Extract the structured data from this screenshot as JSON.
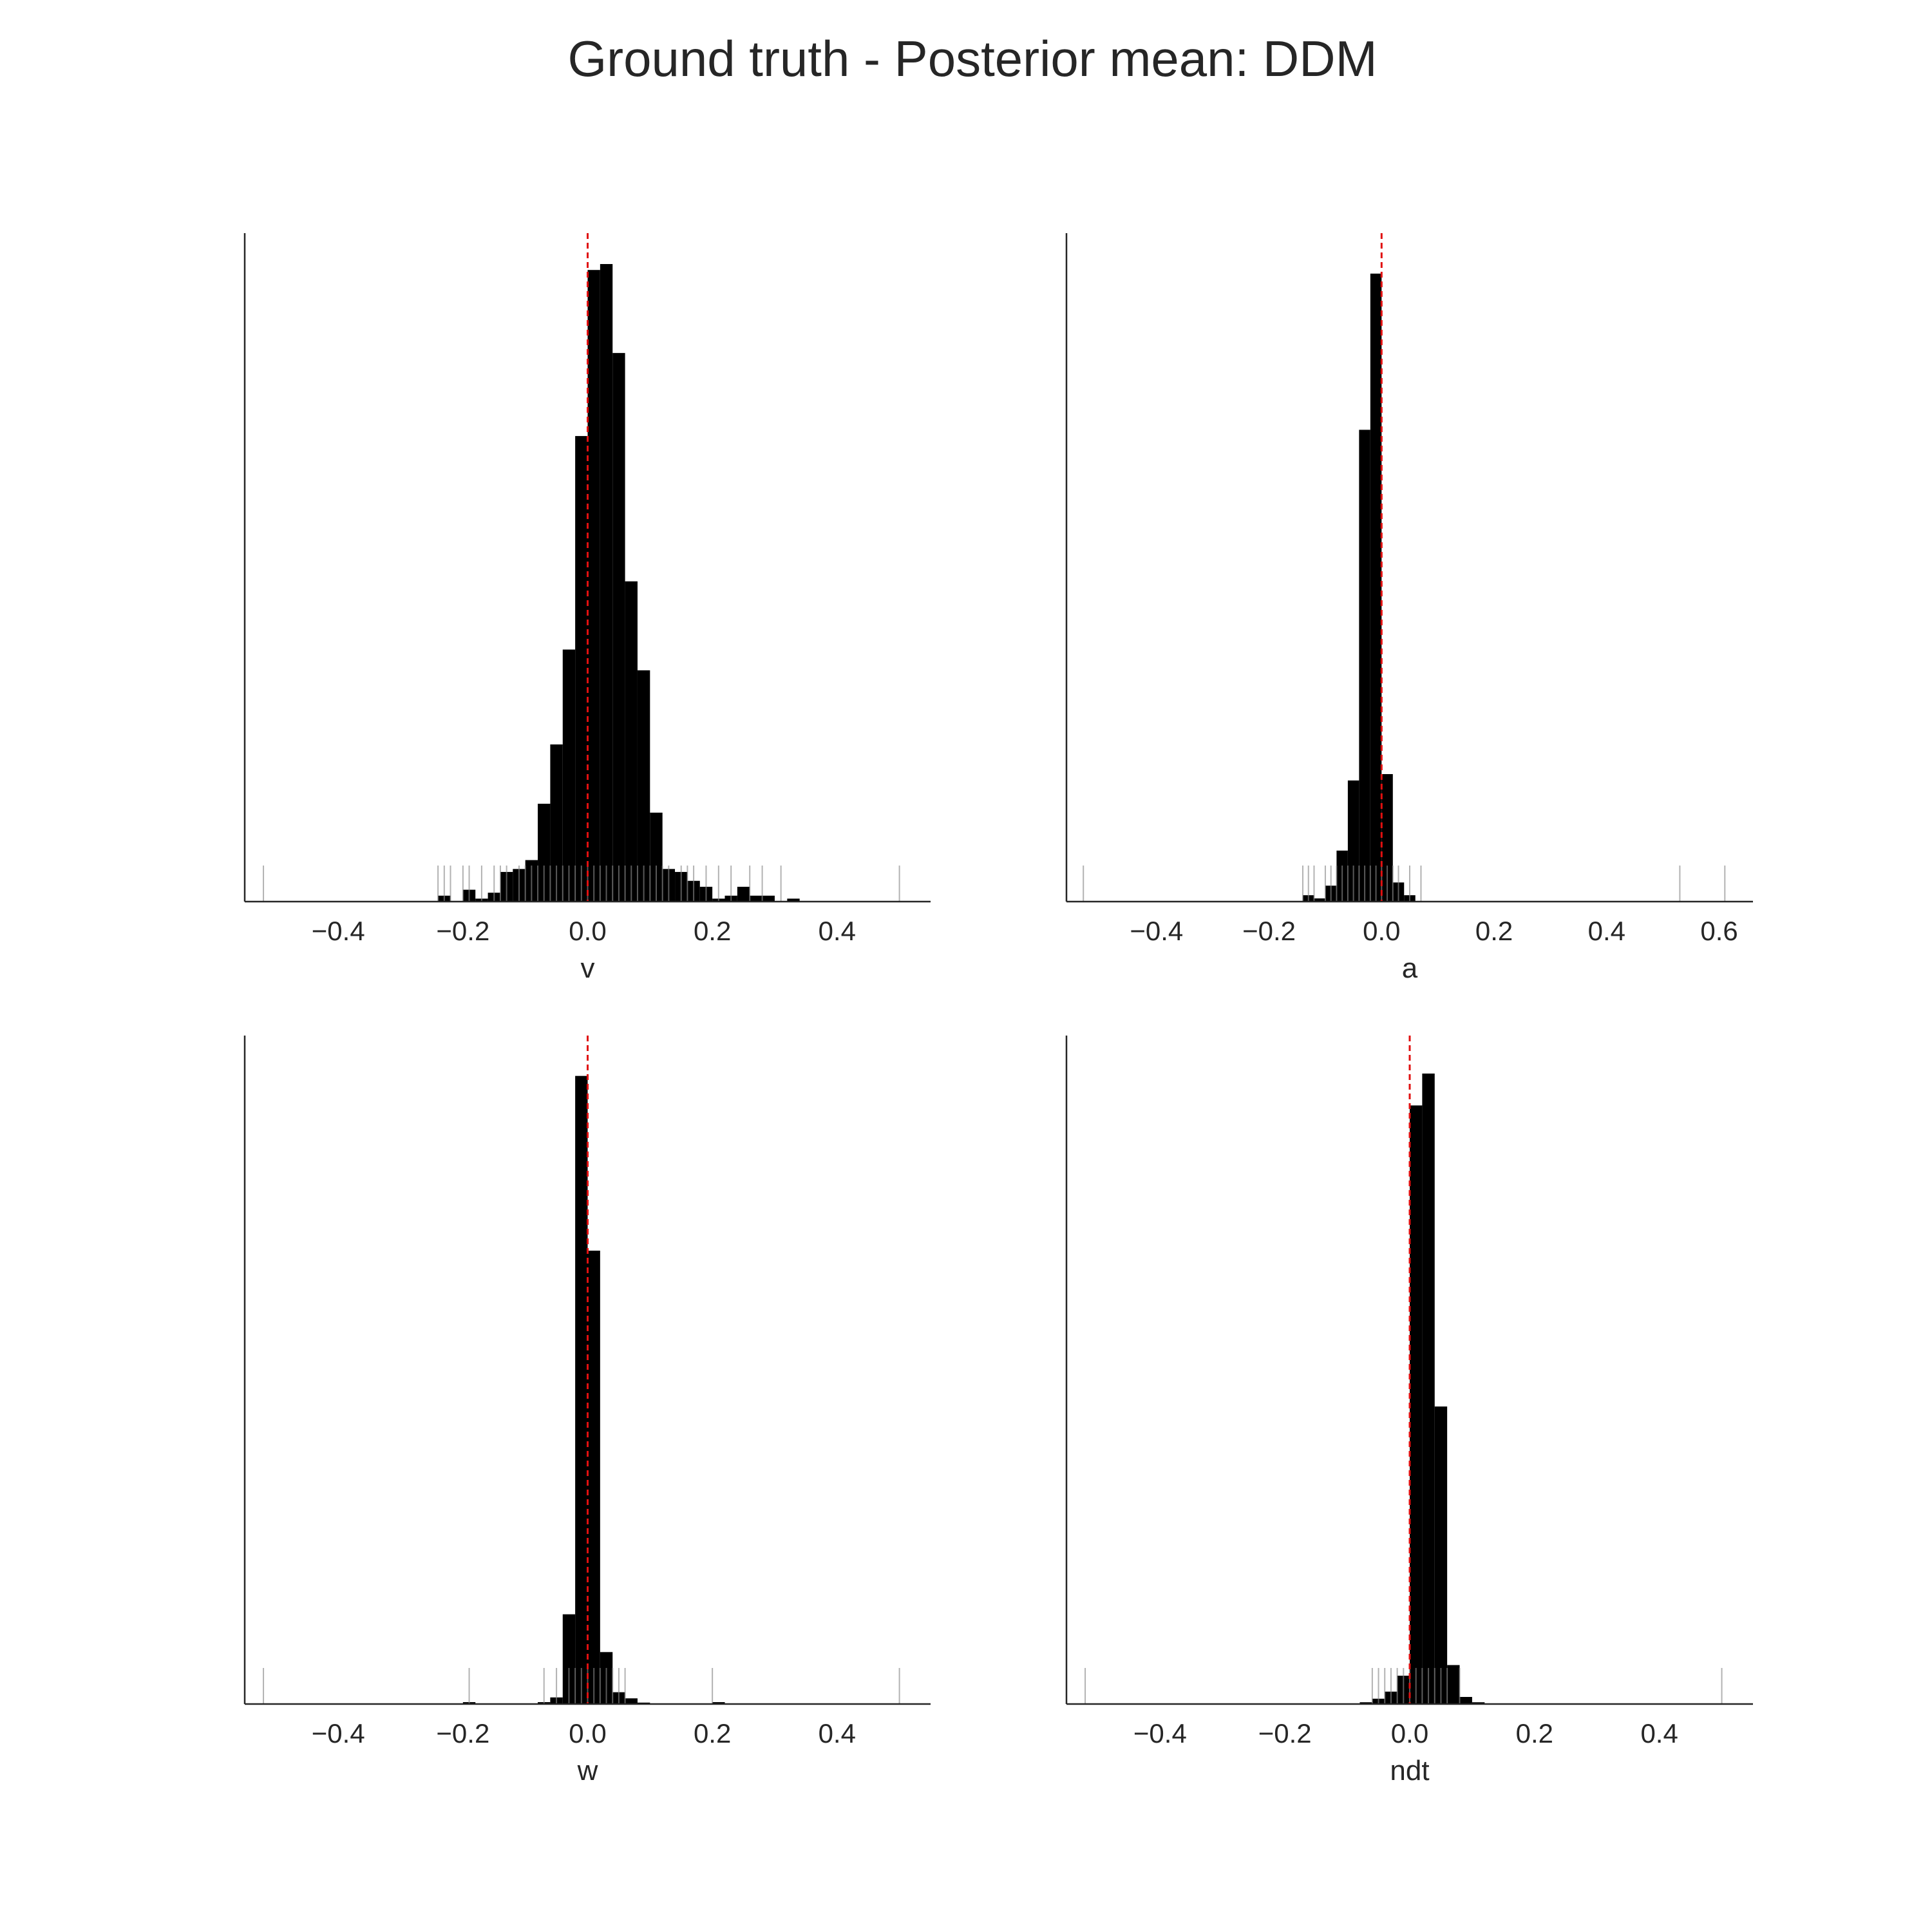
{
  "figure": {
    "title": "Ground truth - Posterior mean: DDM"
  },
  "colors": {
    "bar": "#000000",
    "rug": "#888888",
    "truth_line": "#e01010",
    "axis": "#262626"
  },
  "chart_data": [
    {
      "type": "bar",
      "subtype": "histogram_with_rug",
      "xlabel": "v",
      "ylabel": "",
      "xlim": [
        -0.55,
        0.55
      ],
      "xticks": [
        -0.4,
        -0.2,
        0.0,
        0.2,
        0.4
      ],
      "xtick_labels": [
        "−0.4",
        "−0.2",
        "0.0",
        "0.2",
        "0.4"
      ],
      "bin_width": 0.02,
      "bin_start": -0.24,
      "counts": [
        2,
        0,
        4,
        1,
        3,
        10,
        11,
        14,
        33,
        53,
        85,
        157,
        213,
        215,
        185,
        108,
        78,
        30,
        11,
        10,
        7,
        5,
        1,
        2,
        5,
        2,
        2,
        0,
        1
      ],
      "ymax": 215,
      "reference_line_x": 0.0,
      "rug": [
        -0.52,
        -0.24,
        -0.23,
        -0.22,
        -0.2,
        -0.19,
        -0.17,
        -0.15,
        -0.14,
        -0.13,
        -0.11,
        -0.1,
        -0.09,
        -0.08,
        -0.07,
        -0.06,
        -0.05,
        -0.04,
        -0.03,
        -0.02,
        -0.01,
        0.0,
        0.01,
        0.02,
        0.03,
        0.04,
        0.05,
        0.06,
        0.07,
        0.08,
        0.09,
        0.1,
        0.11,
        0.12,
        0.13,
        0.15,
        0.16,
        0.17,
        0.19,
        0.21,
        0.23,
        0.26,
        0.28,
        0.31,
        0.5
      ]
    },
    {
      "type": "bar",
      "subtype": "histogram_with_rug",
      "xlabel": "a",
      "ylabel": "",
      "xlim": [
        -0.56,
        0.66
      ],
      "xticks": [
        -0.4,
        -0.2,
        0.0,
        0.2,
        0.4,
        0.6
      ],
      "xtick_labels": [
        "−0.4",
        "−0.2",
        "0.0",
        "0.2",
        "0.4",
        "0.6"
      ],
      "bin_width": 0.02,
      "bin_start": -0.14,
      "counts": [
        2,
        1,
        5,
        16,
        38,
        148,
        197,
        40,
        6,
        2
      ],
      "ymax": 200,
      "reference_line_x": 0.0,
      "rug": [
        -0.53,
        -0.14,
        -0.13,
        -0.12,
        -0.1,
        -0.09,
        -0.08,
        -0.07,
        -0.06,
        -0.05,
        -0.04,
        -0.03,
        -0.02,
        -0.01,
        0.0,
        0.01,
        0.02,
        0.03,
        0.05,
        0.07,
        0.53,
        0.61
      ]
    },
    {
      "type": "bar",
      "subtype": "histogram_with_rug",
      "xlabel": "w",
      "ylabel": "",
      "xlim": [
        -0.55,
        0.55
      ],
      "xticks": [
        -0.4,
        -0.2,
        0.0,
        0.2,
        0.4
      ],
      "xtick_labels": [
        "−0.4",
        "−0.2",
        "0.0",
        "0.2",
        "0.4"
      ],
      "bin_width": 0.02,
      "bin_start": -0.2,
      "counts": [
        0.4,
        0,
        0,
        0,
        0,
        0,
        0.4,
        1.4,
        19,
        133,
        96,
        11,
        2.5,
        1.2,
        0.3,
        0,
        0,
        0,
        0,
        0,
        0.4
      ],
      "ymax": 135,
      "reference_line_x": 0.0,
      "rug": [
        -0.52,
        -0.19,
        -0.07,
        -0.05,
        -0.03,
        -0.02,
        -0.01,
        0.0,
        0.01,
        0.02,
        0.03,
        0.04,
        0.05,
        0.06,
        0.2,
        0.5
      ]
    },
    {
      "type": "bar",
      "subtype": "histogram_with_rug",
      "xlabel": "ndt",
      "ylabel": "",
      "xlim": [
        -0.55,
        0.55
      ],
      "xticks": [
        -0.4,
        -0.2,
        0.0,
        0.2,
        0.4
      ],
      "xtick_labels": [
        "−0.4",
        "−0.2",
        "0.0",
        "0.2",
        "0.4"
      ],
      "bin_width": 0.02,
      "bin_start": -0.08,
      "counts": [
        0.5,
        1.5,
        3.5,
        8,
        169,
        178,
        84,
        11,
        2,
        0.5
      ],
      "ymax": 180,
      "reference_line_x": 0.0,
      "rug": [
        -0.52,
        -0.06,
        -0.05,
        -0.04,
        -0.03,
        -0.02,
        -0.01,
        0.0,
        0.01,
        0.02,
        0.03,
        0.04,
        0.05,
        0.06,
        0.08,
        0.5
      ]
    }
  ]
}
